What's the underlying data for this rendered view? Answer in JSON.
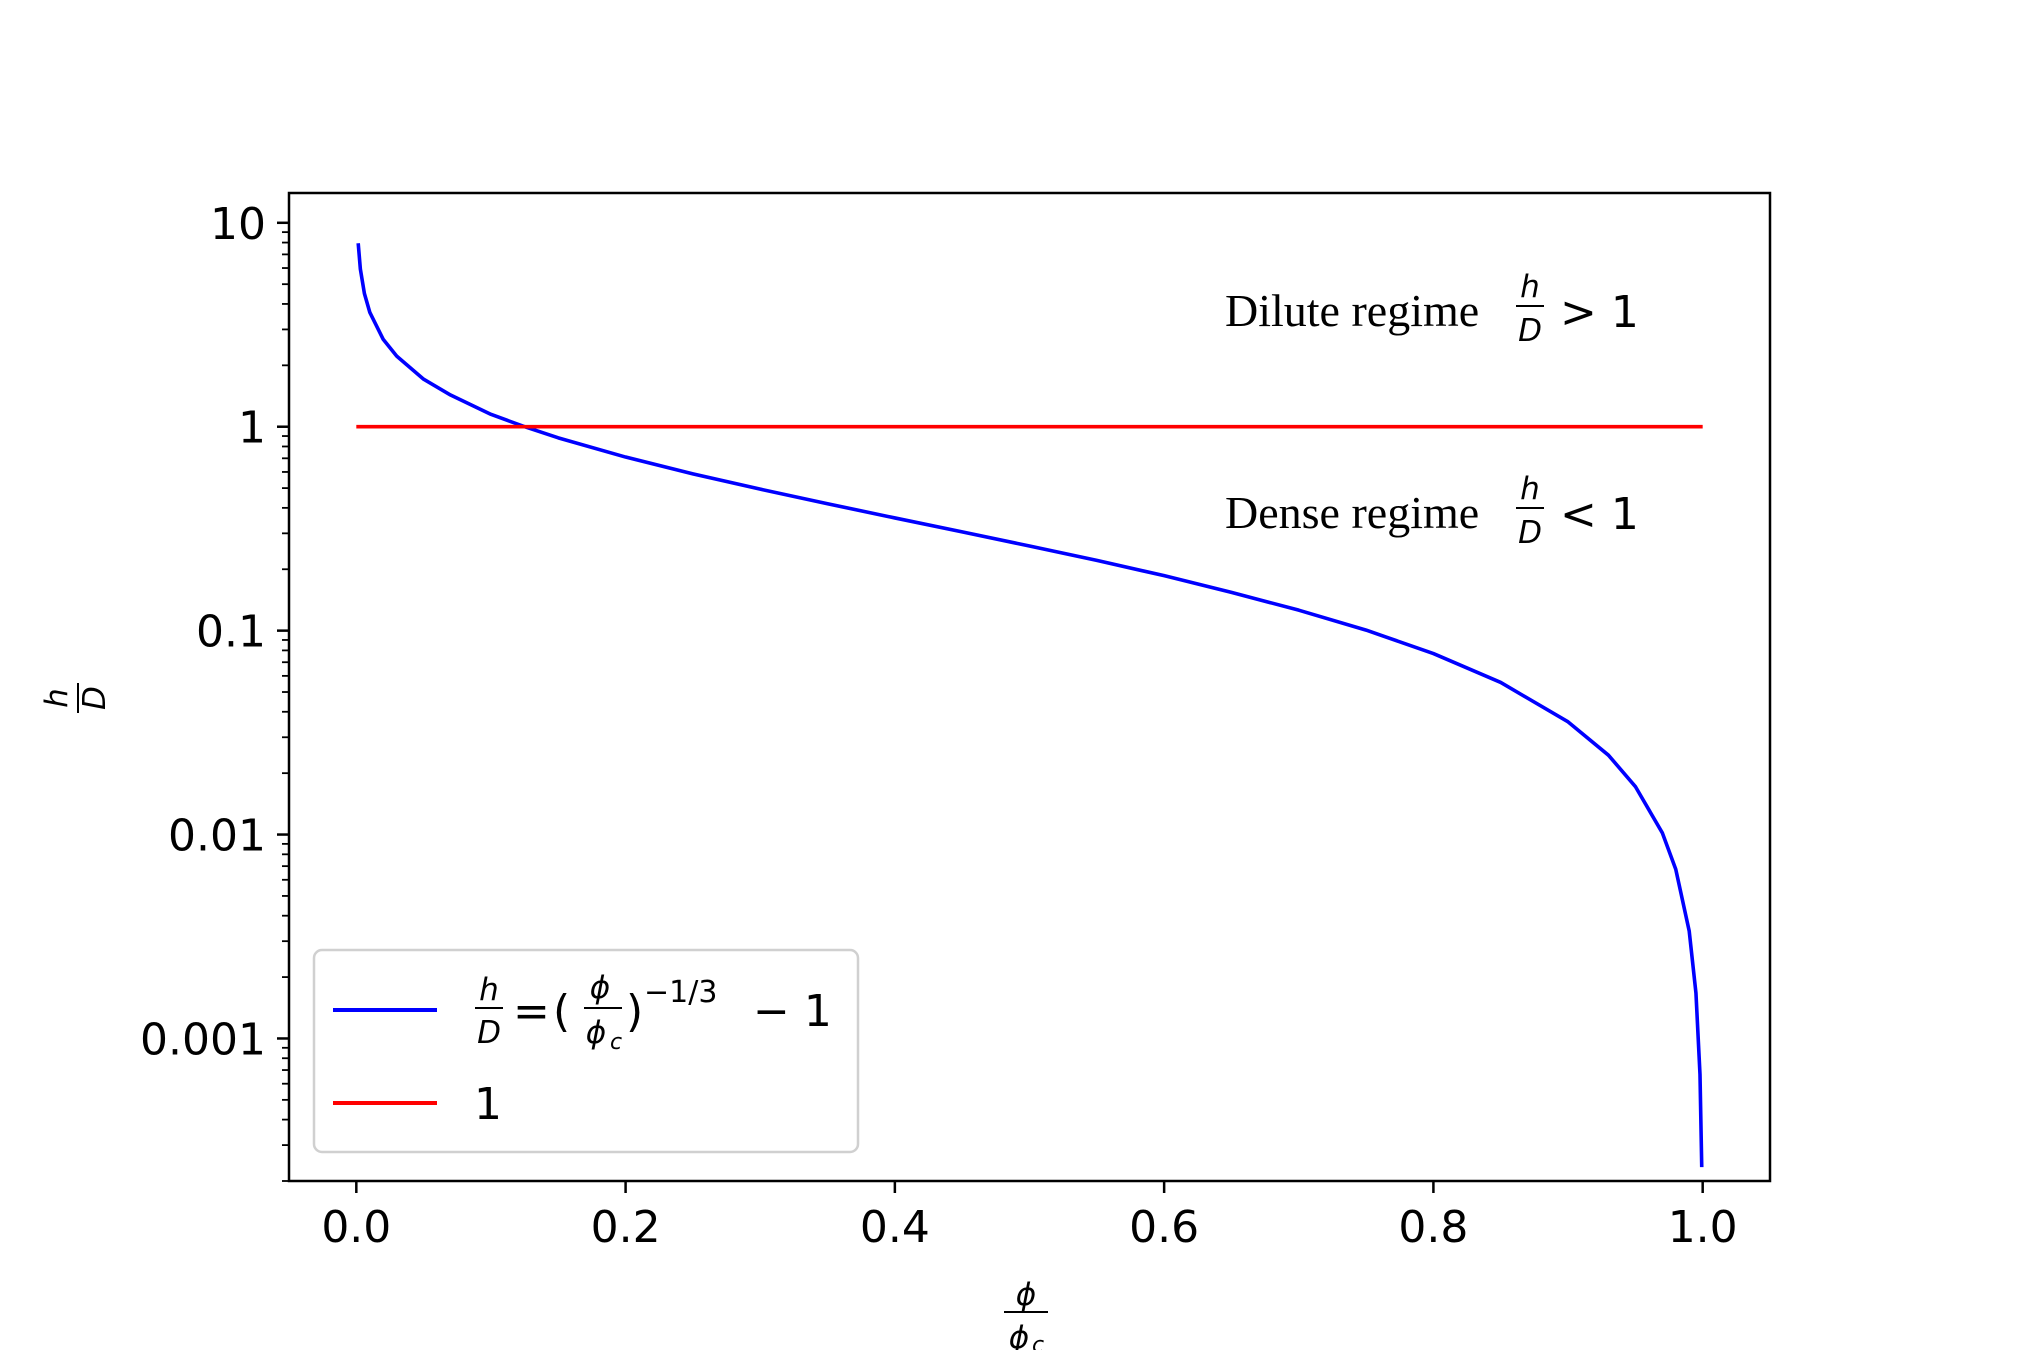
{
  "chart_data": {
    "type": "line",
    "xscale": "linear",
    "yscale": "log",
    "xlim": [
      -0.05,
      1.05
    ],
    "ylim": [
      0.0002,
      14
    ],
    "grid": false,
    "xticks": [
      0.0,
      0.2,
      0.4,
      0.6,
      0.8,
      1.0
    ],
    "xtick_labels": [
      "0.0",
      "0.2",
      "0.4",
      "0.6",
      "0.8",
      "1.0"
    ],
    "yticks": [
      0.001,
      0.01,
      0.1,
      1,
      10
    ],
    "ytick_labels": [
      "0.001",
      "0.01",
      "0.1",
      "1",
      "10"
    ],
    "xlabel": {
      "num": "ϕ",
      "den": "ϕ",
      "den_sub": "c"
    },
    "ylabel": {
      "num": "h",
      "den": "D"
    },
    "legend": {
      "location": "lower-left",
      "entries": [
        {
          "frac_num": "h",
          "frac_den": "D",
          "eq": "=",
          "lparen": "(",
          "inner_num": "ϕ",
          "inner_den": "ϕ",
          "inner_sub": "c",
          "rparen": ")",
          "exponent": "−1/3",
          "tail": "− 1"
        },
        {
          "label": "1"
        }
      ]
    },
    "annotations": [
      {
        "text": "Dilute regime",
        "frac_num": "h",
        "frac_den": "D",
        "rel": "> 1"
      },
      {
        "text": "Dense regime",
        "frac_num": "h",
        "frac_den": "D",
        "rel": "< 1"
      }
    ],
    "series": [
      {
        "color": "#0000ff",
        "x": [
          0.0014,
          0.003,
          0.006,
          0.01,
          0.02,
          0.03,
          0.05,
          0.07,
          0.1,
          0.125,
          0.15,
          0.2,
          0.25,
          0.3,
          0.35,
          0.4,
          0.45,
          0.5,
          0.55,
          0.6,
          0.65,
          0.7,
          0.75,
          0.8,
          0.85,
          0.9,
          0.93,
          0.95,
          0.97,
          0.98,
          0.99,
          0.995,
          0.998,
          0.9993
        ],
        "y": [
          7.94,
          5.93,
          4.5,
          3.64,
          2.68,
          2.22,
          1.71,
          1.43,
          1.15,
          1.0,
          0.882,
          0.71,
          0.587,
          0.494,
          0.419,
          0.357,
          0.305,
          0.26,
          0.221,
          0.186,
          0.154,
          0.126,
          0.1006,
          0.0772,
          0.0557,
          0.0357,
          0.0245,
          0.0172,
          0.0102,
          0.00676,
          0.00336,
          0.00167,
          0.000667,
          0.000234
        ]
      },
      {
        "color": "#ff0000",
        "x": [
          0.0,
          1.0
        ],
        "y": [
          1,
          1
        ]
      }
    ]
  }
}
